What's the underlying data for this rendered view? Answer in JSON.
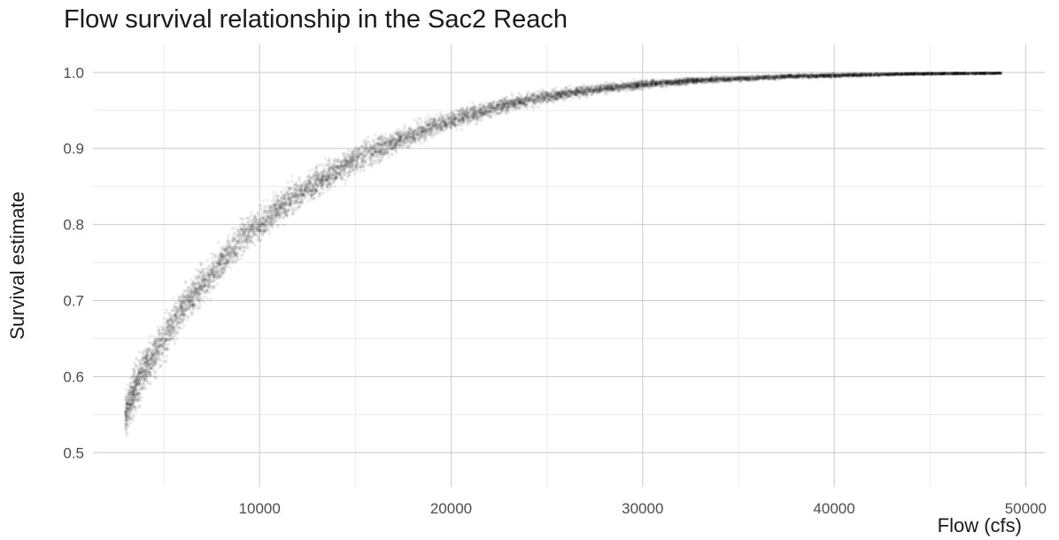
{
  "chart_data": {
    "type": "scatter",
    "title": "Flow survival relationship in the Sac2 Reach",
    "xlabel": "Flow (cfs)",
    "ylabel": "Survival estimate",
    "xlim": [
      1300,
      51000
    ],
    "ylim": [
      0.455,
      1.037
    ],
    "x_ticks": [
      10000,
      20000,
      30000,
      40000,
      50000
    ],
    "x_tick_labels": [
      "10000",
      "20000",
      "30000",
      "40000",
      "50000"
    ],
    "y_ticks": [
      0.5,
      0.6,
      0.7,
      0.8,
      0.9,
      1.0
    ],
    "y_tick_labels": [
      "0.5",
      "0.6",
      "0.7",
      "0.8",
      "0.9",
      "1.0"
    ],
    "grid": true,
    "point_color": "#000000",
    "point_opacity": 0.07,
    "series": [
      {
        "x": [
          3000,
          3500,
          4000,
          5000,
          6000,
          7000,
          8000,
          9000,
          10000,
          11000,
          12000,
          13000,
          14000,
          15000,
          16000,
          17000,
          18000,
          19000,
          20000,
          21000,
          22000,
          23000,
          24000,
          25000,
          26000,
          27000,
          28000,
          30000,
          32000,
          34000,
          36000,
          38000,
          40000,
          42000,
          44000,
          46000,
          48700
        ],
        "y": [
          0.55,
          0.585,
          0.61,
          0.65,
          0.69,
          0.72,
          0.75,
          0.78,
          0.8,
          0.82,
          0.84,
          0.855,
          0.87,
          0.885,
          0.898,
          0.908,
          0.918,
          0.928,
          0.937,
          0.945,
          0.952,
          0.958,
          0.963,
          0.968,
          0.972,
          0.976,
          0.979,
          0.984,
          0.988,
          0.991,
          0.993,
          0.995,
          0.996,
          0.997,
          0.998,
          0.9985,
          0.999
        ],
        "band": [
          0.05,
          0.048,
          0.046,
          0.044,
          0.042,
          0.04,
          0.038,
          0.036,
          0.035,
          0.034,
          0.032,
          0.031,
          0.029,
          0.028,
          0.027,
          0.025,
          0.024,
          0.022,
          0.02,
          0.019,
          0.017,
          0.016,
          0.015,
          0.014,
          0.012,
          0.011,
          0.01,
          0.009,
          0.007,
          0.006,
          0.005,
          0.004,
          0.004,
          0.003,
          0.002,
          0.002,
          0.001
        ]
      }
    ]
  }
}
